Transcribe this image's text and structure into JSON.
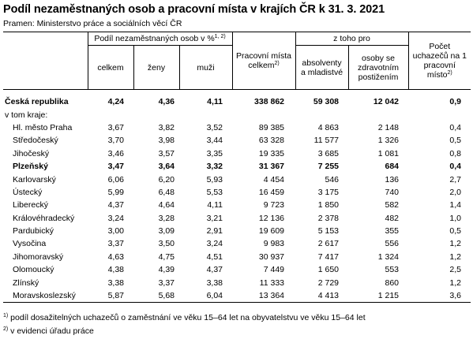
{
  "title": "Podíl nezaměstnaných osob a pracovní místa v krajích ČR k 31. 3. 2021",
  "source": "Pramen: Ministerstvo práce a sociálních věcí ČR",
  "header": {
    "share_group": "Podíl nezaměstnaných osob v %",
    "share_group_note": "1, 2)",
    "col_total": "celkem",
    "col_women": "ženy",
    "col_men": "muži",
    "col_jobs": "Pracovní místa celkem",
    "col_jobs_note": "2)",
    "of_which": "z toho pro",
    "col_graduates": "absolventy a mladistvé",
    "col_disabled": "osoby se zdravotním postižením",
    "col_ratio": "Počet uchazečů na 1 pracovní místo",
    "col_ratio_note": "2)"
  },
  "rows": [
    {
      "name": "Česká republika",
      "total": "4,24",
      "women": "4,36",
      "men": "4,11",
      "jobs": "338 862",
      "graduates": "59 308",
      "disabled": "12 042",
      "ratio": "0,9"
    },
    {
      "name": "v tom kraje:"
    },
    {
      "name": "Hl. město Praha",
      "total": "3,67",
      "women": "3,82",
      "men": "3,52",
      "jobs": "89 385",
      "graduates": "4 863",
      "disabled": "2 148",
      "ratio": "0,4"
    },
    {
      "name": "Středočeský",
      "total": "3,70",
      "women": "3,98",
      "men": "3,44",
      "jobs": "63 328",
      "graduates": "11 577",
      "disabled": "1 326",
      "ratio": "0,5"
    },
    {
      "name": "Jihočeský",
      "total": "3,46",
      "women": "3,57",
      "men": "3,35",
      "jobs": "19 335",
      "graduates": "3 685",
      "disabled": "1 081",
      "ratio": "0,8"
    },
    {
      "name": "Plzeňský",
      "total": "3,47",
      "women": "3,64",
      "men": "3,32",
      "jobs": "31 367",
      "graduates": "7 255",
      "disabled": "684",
      "ratio": "0,4"
    },
    {
      "name": "Karlovarský",
      "total": "6,06",
      "women": "6,20",
      "men": "5,93",
      "jobs": "4 454",
      "graduates": "546",
      "disabled": "136",
      "ratio": "2,7"
    },
    {
      "name": "Ústecký",
      "total": "5,99",
      "women": "6,48",
      "men": "5,53",
      "jobs": "16 459",
      "graduates": "3 175",
      "disabled": "740",
      "ratio": "2,0"
    },
    {
      "name": "Liberecký",
      "total": "4,37",
      "women": "4,64",
      "men": "4,11",
      "jobs": "9 723",
      "graduates": "1 850",
      "disabled": "582",
      "ratio": "1,4"
    },
    {
      "name": "Královéhradecký",
      "total": "3,24",
      "women": "3,28",
      "men": "3,21",
      "jobs": "12 136",
      "graduates": "2 378",
      "disabled": "482",
      "ratio": "1,0"
    },
    {
      "name": "Pardubický",
      "total": "3,00",
      "women": "3,09",
      "men": "2,91",
      "jobs": "19 609",
      "graduates": "5 153",
      "disabled": "355",
      "ratio": "0,5"
    },
    {
      "name": "Vysočina",
      "total": "3,37",
      "women": "3,50",
      "men": "3,24",
      "jobs": "9 983",
      "graduates": "2 617",
      "disabled": "556",
      "ratio": "1,2"
    },
    {
      "name": "Jihomoravský",
      "total": "4,63",
      "women": "4,75",
      "men": "4,51",
      "jobs": "30 937",
      "graduates": "7 417",
      "disabled": "1 324",
      "ratio": "1,2"
    },
    {
      "name": "Olomoucký",
      "total": "4,38",
      "women": "4,39",
      "men": "4,37",
      "jobs": "7 449",
      "graduates": "1 650",
      "disabled": "553",
      "ratio": "2,5"
    },
    {
      "name": "Zlínský",
      "total": "3,38",
      "women": "3,37",
      "men": "3,38",
      "jobs": "11 333",
      "graduates": "2 729",
      "disabled": "860",
      "ratio": "1,2"
    },
    {
      "name": "Moravskoslezský",
      "total": "5,87",
      "women": "5,68",
      "men": "6,04",
      "jobs": "13 364",
      "graduates": "4 413",
      "disabled": "1 215",
      "ratio": "3,6"
    }
  ],
  "footnotes": [
    {
      "mark": "1)",
      "text": "podíl dosažitelných uchazečů o zaměstnání ve věku 15–64 let na obyvatelstvu ve věku 15–64 let"
    },
    {
      "mark": "2)",
      "text": "v evidenci úřadu práce"
    }
  ]
}
